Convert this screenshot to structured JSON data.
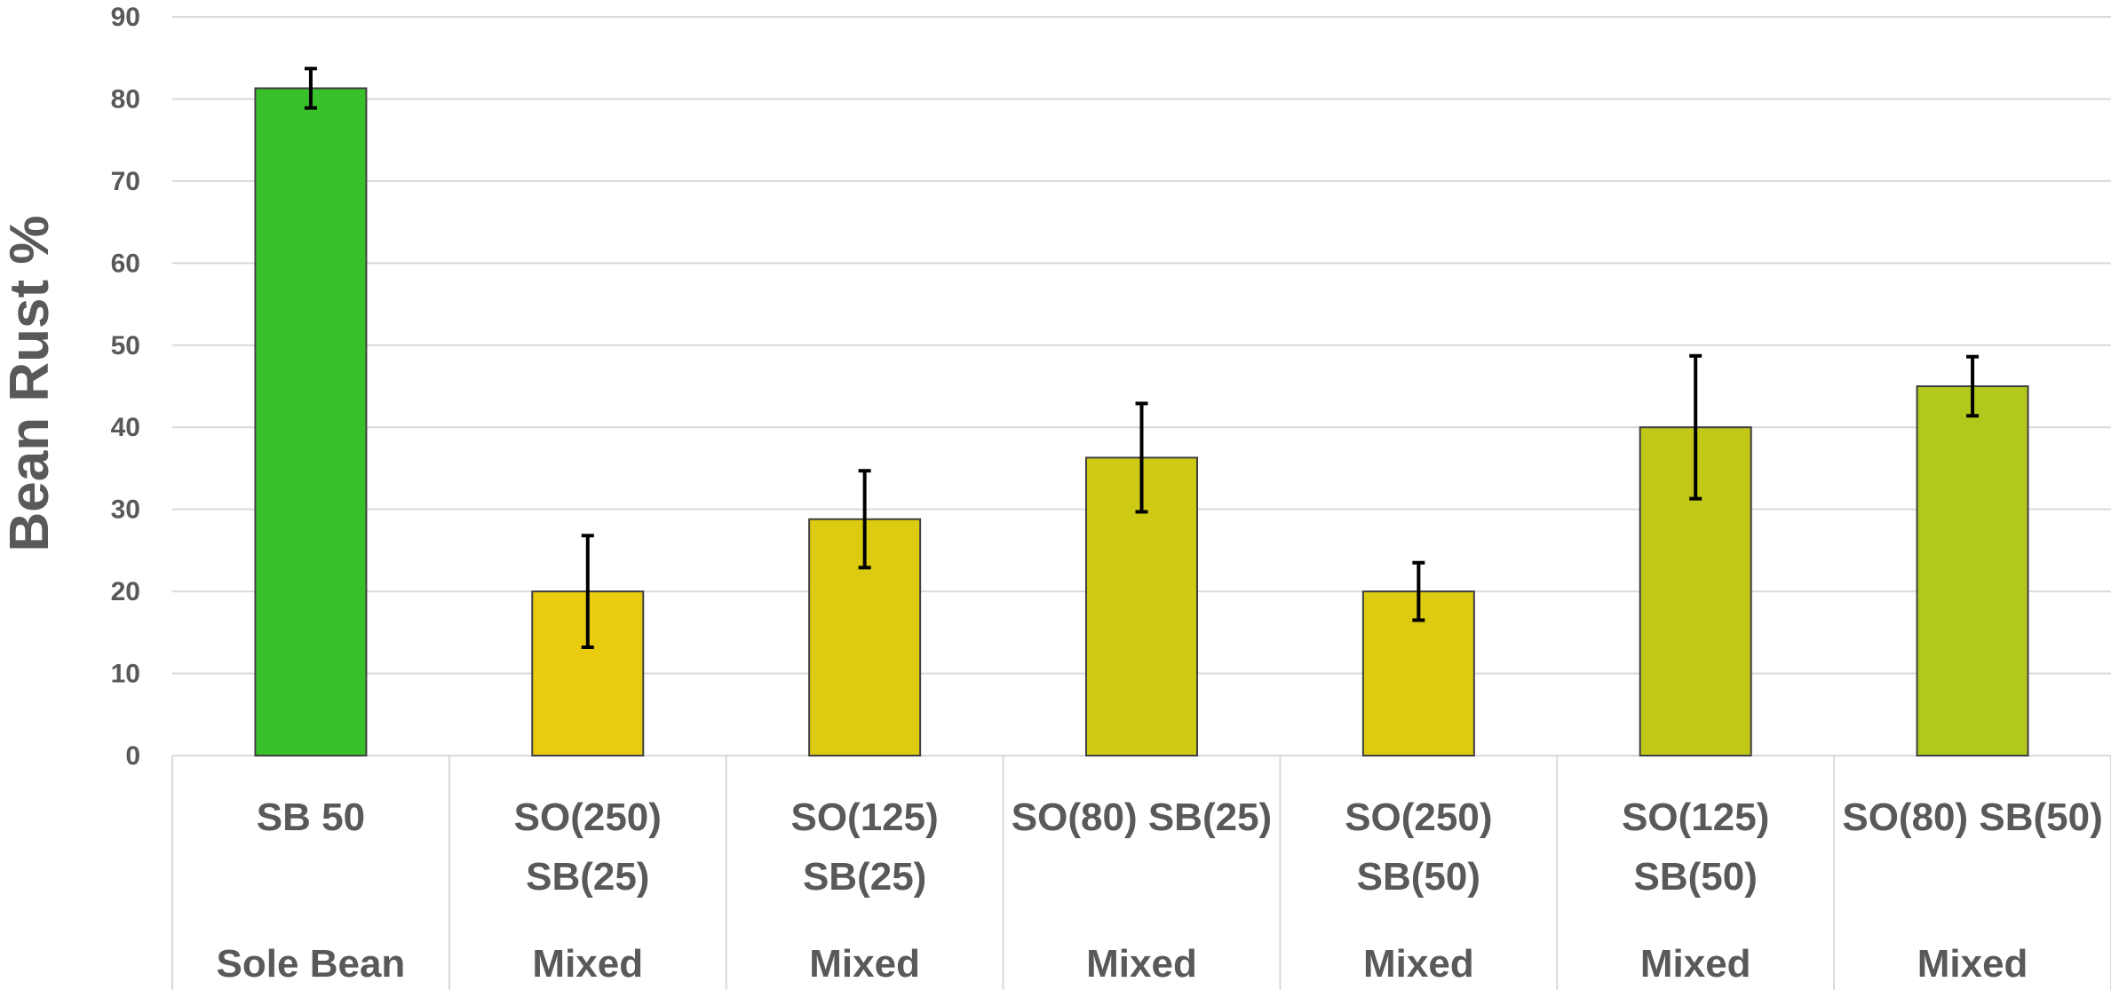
{
  "chart_data": {
    "type": "bar",
    "title": "",
    "xlabel": "",
    "ylabel": "Bean Rust %",
    "ylim": [
      0,
      90
    ],
    "yticks": [
      0,
      10,
      20,
      30,
      40,
      50,
      60,
      70,
      80,
      90
    ],
    "grid": true,
    "legend": "none",
    "categories": [
      {
        "label": [
          "SB 50"
        ],
        "group": "Sole Bean"
      },
      {
        "label": [
          "SO(250)",
          "SB(25)"
        ],
        "group": "Mixed"
      },
      {
        "label": [
          "SO(125)",
          "SB(25)"
        ],
        "group": "Mixed"
      },
      {
        "label": [
          "SO(80) SB(25)"
        ],
        "group": "Mixed"
      },
      {
        "label": [
          "SO(250)",
          "SB(50)"
        ],
        "group": "Mixed"
      },
      {
        "label": [
          "SO(125)",
          "SB(50)"
        ],
        "group": "Mixed"
      },
      {
        "label": [
          "SO(80) SB(50)"
        ],
        "group": "Mixed"
      }
    ],
    "values": [
      81.3,
      20.0,
      28.8,
      36.3,
      20.0,
      40.0,
      45.0
    ],
    "error": [
      2.4,
      6.8,
      5.9,
      6.6,
      3.5,
      8.7,
      3.6
    ],
    "colors": [
      "#38c12a",
      "#e9cb10",
      "#dccb10",
      "#cfca14",
      "#dccb10",
      "#c1c818",
      "#b2c81c"
    ]
  }
}
